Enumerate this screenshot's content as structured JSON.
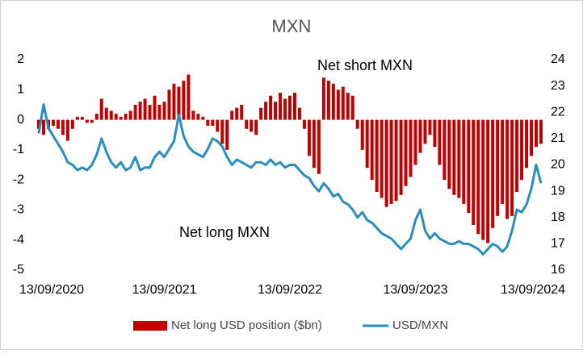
{
  "chart_data": {
    "type": "bar_line",
    "title": "MXN",
    "annotations": [
      "Net short MXN",
      "Net long MXN"
    ],
    "categories": [
      "13/09/2020",
      null,
      null,
      null,
      null,
      null,
      null,
      null,
      null,
      null,
      null,
      null,
      null,
      null,
      null,
      null,
      null,
      null,
      null,
      null,
      null,
      null,
      null,
      null,
      null,
      null,
      "13/09/2021",
      null,
      null,
      null,
      null,
      null,
      null,
      null,
      null,
      null,
      null,
      null,
      null,
      null,
      null,
      null,
      null,
      null,
      null,
      null,
      null,
      null,
      null,
      null,
      null,
      null,
      "13/09/2022",
      null,
      null,
      null,
      null,
      null,
      null,
      null,
      null,
      null,
      null,
      null,
      null,
      null,
      null,
      null,
      null,
      null,
      null,
      null,
      null,
      null,
      null,
      null,
      null,
      null,
      "13/09/2023",
      null,
      null,
      null,
      null,
      null,
      null,
      null,
      null,
      null,
      null,
      null,
      null,
      null,
      null,
      null,
      null,
      null,
      null,
      null,
      null,
      null,
      null,
      null,
      null,
      null,
      "13/09/2024"
    ],
    "series": [
      {
        "name": "Net long USD position ($bn)",
        "type": "bar",
        "color": "#c00000",
        "values": [
          -0.3,
          -0.5,
          -0.3,
          -0.2,
          -0.3,
          -0.5,
          -0.7,
          -0.3,
          0.1,
          0.1,
          -0.1,
          -0.1,
          0.2,
          0.7,
          0.4,
          0.3,
          0.2,
          0.1,
          0.2,
          0.3,
          0.5,
          0.6,
          0.7,
          0.5,
          0.8,
          0.5,
          0.6,
          1.0,
          1.2,
          1.1,
          1.3,
          1.5,
          0.3,
          0.2,
          0.1,
          -0.2,
          -0.2,
          -0.4,
          -0.8,
          -1.0,
          0.3,
          0.4,
          0.5,
          -0.3,
          -0.4,
          -0.5,
          0.4,
          0.6,
          0.8,
          0.6,
          0.9,
          0.7,
          0.8,
          0.9,
          0.4,
          -0.3,
          -1.2,
          -1.6,
          -1.8,
          1.4,
          1.3,
          1.2,
          1.0,
          1.1,
          0.9,
          0.8,
          -0.3,
          -1.0,
          -1.6,
          -2.0,
          -2.4,
          -2.6,
          -2.9,
          -2.8,
          -2.7,
          -2.5,
          -2.2,
          -1.9,
          -1.5,
          -1.1,
          -0.8,
          -0.5,
          -0.9,
          -1.5,
          -2.0,
          -2.3,
          -2.5,
          -2.6,
          -2.8,
          -3.1,
          -3.5,
          -3.8,
          -4.0,
          -4.1,
          -3.6,
          -3.2,
          -2.8,
          -3.3,
          -3.2,
          -2.4,
          -2.0,
          -1.6,
          -1.2,
          -0.9,
          -0.8
        ]
      },
      {
        "name": "USD/MXN",
        "type": "line",
        "axis": "y2",
        "color": "#2a8dbf",
        "values": [
          21.2,
          22.3,
          21.4,
          21.1,
          20.8,
          20.5,
          20.1,
          20.0,
          19.8,
          19.9,
          19.8,
          20.0,
          20.4,
          21.0,
          20.5,
          20.1,
          19.9,
          20.1,
          19.8,
          19.9,
          20.3,
          19.8,
          19.9,
          19.9,
          20.3,
          20.5,
          20.3,
          20.6,
          20.9,
          21.9,
          21.1,
          20.7,
          20.5,
          20.4,
          20.3,
          20.6,
          21.0,
          20.9,
          20.7,
          20.3,
          20.0,
          20.2,
          20.1,
          20.0,
          19.9,
          20.1,
          20.1,
          20.0,
          20.2,
          20.0,
          20.1,
          19.9,
          20.0,
          20.0,
          19.8,
          19.6,
          19.5,
          19.2,
          19.0,
          19.3,
          19.1,
          18.8,
          18.9,
          18.6,
          18.5,
          18.3,
          18.0,
          18.2,
          17.9,
          17.8,
          17.6,
          17.4,
          17.3,
          17.2,
          17.0,
          16.8,
          17.0,
          17.2,
          17.9,
          18.3,
          17.5,
          17.2,
          17.4,
          17.2,
          17.1,
          17.0,
          17.0,
          17.1,
          17.0,
          17.0,
          16.9,
          16.8,
          16.6,
          16.8,
          17.0,
          16.9,
          16.7,
          16.9,
          17.5,
          18.3,
          18.2,
          18.5,
          19.1,
          20.0,
          19.3
        ]
      }
    ],
    "ylim": [
      -5,
      2
    ],
    "yticks": [
      -5,
      -4,
      -3,
      -2,
      -1,
      0,
      1,
      2
    ],
    "y2lim": [
      16,
      24
    ],
    "y2ticks": [
      16,
      17,
      18,
      19,
      20,
      21,
      22,
      23,
      24
    ],
    "legend": "bottom"
  }
}
